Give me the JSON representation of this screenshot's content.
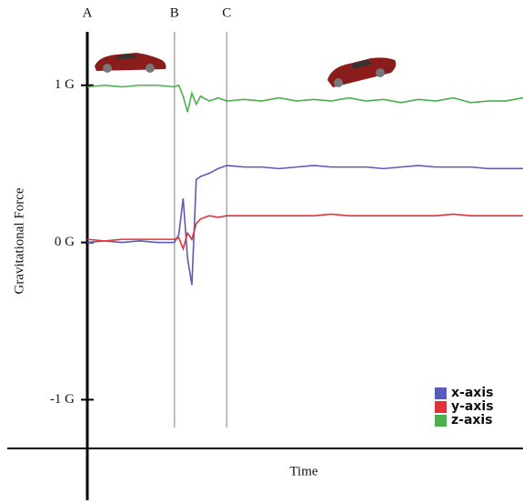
{
  "chart_data": {
    "type": "line",
    "ylabel": "Gravitational Force",
    "xlabel": "Time",
    "x": [
      0,
      4,
      8,
      12,
      16,
      20,
      21,
      22,
      23,
      24,
      25,
      26,
      28,
      30,
      32,
      36,
      40,
      44,
      48,
      52,
      56,
      60,
      64,
      68,
      72,
      76,
      80,
      84,
      88,
      92,
      96,
      100
    ],
    "xlim": [
      0,
      100
    ],
    "ylim": [
      -1.31,
      1.34
    ],
    "yticks": [
      {
        "value": 1,
        "label": "1 G"
      },
      {
        "value": 0,
        "label": "0 G"
      },
      {
        "value": -1,
        "label": "-1 G"
      }
    ],
    "events": [
      {
        "label": "A",
        "x": 0
      },
      {
        "label": "B",
        "x": 20
      },
      {
        "label": "C",
        "x": 32
      }
    ],
    "legend": "lower right",
    "series": [
      {
        "name": "x-axis",
        "color": "#5a5ab8",
        "values": [
          0.0,
          0.01,
          0.0,
          0.01,
          0.0,
          0.0,
          0.05,
          0.28,
          -0.1,
          -0.27,
          0.4,
          0.42,
          0.44,
          0.47,
          0.49,
          0.48,
          0.48,
          0.47,
          0.48,
          0.49,
          0.48,
          0.48,
          0.48,
          0.47,
          0.48,
          0.49,
          0.48,
          0.48,
          0.48,
          0.47,
          0.47,
          0.47
        ]
      },
      {
        "name": "y-axis",
        "color": "#e0323a",
        "values": [
          0.02,
          0.01,
          0.02,
          0.02,
          0.02,
          0.02,
          0.03,
          -0.04,
          0.06,
          0.02,
          0.12,
          0.15,
          0.17,
          0.16,
          0.17,
          0.17,
          0.17,
          0.17,
          0.17,
          0.17,
          0.18,
          0.17,
          0.17,
          0.17,
          0.17,
          0.17,
          0.17,
          0.18,
          0.17,
          0.17,
          0.17,
          0.17
        ]
      },
      {
        "name": "z-axis",
        "color": "#4cae4c",
        "values": [
          0.99,
          1.0,
          0.99,
          1.0,
          1.0,
          0.99,
          1.0,
          0.93,
          0.83,
          0.95,
          0.88,
          0.93,
          0.9,
          0.92,
          0.9,
          0.91,
          0.9,
          0.92,
          0.9,
          0.91,
          0.9,
          0.92,
          0.9,
          0.91,
          0.89,
          0.91,
          0.9,
          0.92,
          0.89,
          0.9,
          0.9,
          0.92
        ]
      }
    ]
  }
}
